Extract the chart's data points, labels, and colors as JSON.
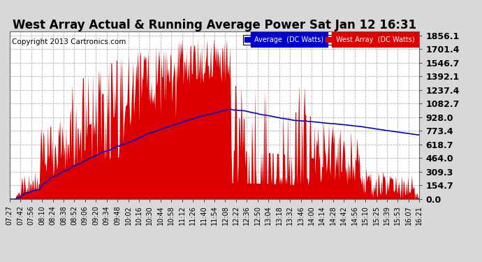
{
  "title": "West Array Actual & Running Average Power Sat Jan 12 16:31",
  "copyright": "Copyright 2013 Cartronics.com",
  "legend_avg": "Average  (DC Watts)",
  "legend_west": "West Array  (DC Watts)",
  "ylabel_values": [
    0.0,
    154.7,
    309.3,
    464.0,
    618.7,
    773.4,
    928.0,
    1082.7,
    1237.4,
    1392.1,
    1546.7,
    1701.4,
    1856.1
  ],
  "ymax": 1900,
  "background_color": "#d8d8d8",
  "plot_bg_color": "#ffffff",
  "bar_color": "#dd0000",
  "avg_color": "#0000cc",
  "title_color": "#000000",
  "grid_color": "#aaaaaa",
  "title_fontsize": 12,
  "copyright_fontsize": 7.5,
  "tick_fontsize": 7,
  "ytick_fontsize": 9,
  "xtick_labels": [
    "07:27",
    "07:42",
    "07:56",
    "08:10",
    "08:24",
    "08:38",
    "08:52",
    "09:06",
    "09:20",
    "09:34",
    "09:48",
    "10:02",
    "10:16",
    "10:30",
    "10:44",
    "10:58",
    "11:12",
    "11:26",
    "11:40",
    "11:54",
    "12:08",
    "12:22",
    "12:36",
    "12:50",
    "13:04",
    "13:18",
    "13:32",
    "13:46",
    "14:00",
    "14:14",
    "14:28",
    "14:42",
    "14:56",
    "15:10",
    "15:25",
    "15:39",
    "15:53",
    "16:07",
    "16:21"
  ]
}
